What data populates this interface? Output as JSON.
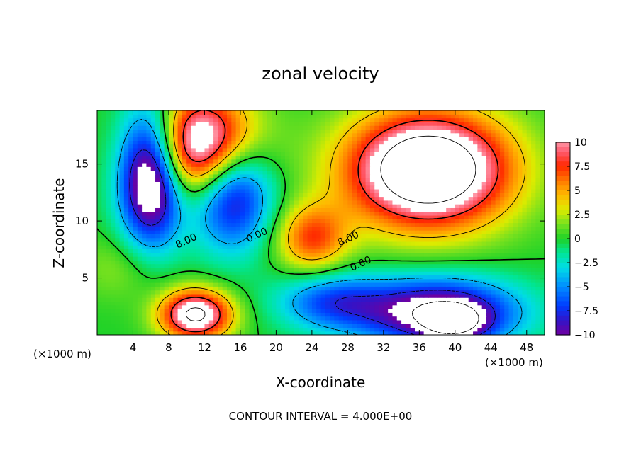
{
  "chart_data": {
    "type": "heatmap",
    "title": "zonal velocity",
    "xlabel": "X-coordinate",
    "ylabel": "Z-coordinate",
    "x_unit_label": "(×1000 m)",
    "x_unit_label_right": "(×1000 m)",
    "footer": "CONTOUR INTERVAL = 4.000E+00",
    "xlim": [
      0,
      50
    ],
    "ylim": [
      0,
      19.7
    ],
    "x_ticks": [
      4,
      8,
      12,
      16,
      20,
      24,
      28,
      32,
      36,
      40,
      44,
      48
    ],
    "x_tick_labels": [
      "4",
      "8",
      "12",
      "16",
      "20",
      "24",
      "28",
      "32",
      "36",
      "40",
      "44",
      "48"
    ],
    "y_ticks": [
      5,
      10,
      15
    ],
    "y_tick_labels": [
      "5",
      "10",
      "15"
    ],
    "colorbar": {
      "min": -10,
      "max": 10,
      "ticks": [
        10,
        7.5,
        5,
        2.5,
        0,
        -2.5,
        -5,
        -7.5,
        -10
      ],
      "tick_labels": [
        "10",
        "7.5",
        "5",
        "2.5",
        "0",
        "−2.5",
        "−5",
        "−7.5",
        "−10"
      ]
    },
    "contour_labels": [
      {
        "text": "8.00",
        "x": 10.1,
        "y": 8.0
      },
      {
        "text": "0.00",
        "x": 18.0,
        "y": 8.5
      },
      {
        "text": "8.00",
        "x": 28.2,
        "y": 8.2
      },
      {
        "text": "0.00",
        "x": 29.6,
        "y": 6.0
      }
    ],
    "features": [
      {
        "name": "upper-left-jet",
        "x": 12,
        "y": 16.5,
        "sx": 6,
        "sy": 4.5,
        "value": 16
      },
      {
        "name": "upper-left-negative",
        "x": 6,
        "y": 14,
        "sx": 3.5,
        "sy": 6,
        "value": -15
      },
      {
        "name": "upper-left-negative-band",
        "x": 15,
        "y": 13,
        "sx": 4.5,
        "sy": 5,
        "value": -12
      },
      {
        "name": "lower-left-positive",
        "x": 11,
        "y": 1.8,
        "sx": 4,
        "sy": 2.2,
        "value": 13
      },
      {
        "name": "upper-right-jet",
        "x": 37,
        "y": 14.5,
        "sx": 9,
        "sy": 5,
        "value": 17
      },
      {
        "name": "lower-right-negative",
        "x": 38,
        "y": 2,
        "sx": 9,
        "sy": 3,
        "value": -12
      },
      {
        "name": "lower-right-deep-negative",
        "x": 40,
        "y": 1,
        "sx": 3.5,
        "sy": 1.6,
        "value": -6
      },
      {
        "name": "center-tongue",
        "x": 24,
        "y": 8.5,
        "sx": 4,
        "sy": 3,
        "value": 7
      },
      {
        "name": "mid-left-band",
        "x": 3,
        "y": 6,
        "sx": 5,
        "sy": 3,
        "value": 2
      },
      {
        "name": "lower-middle-negative",
        "x": 26,
        "y": 3,
        "sx": 6,
        "sy": 2.5,
        "value": -6
      }
    ]
  }
}
